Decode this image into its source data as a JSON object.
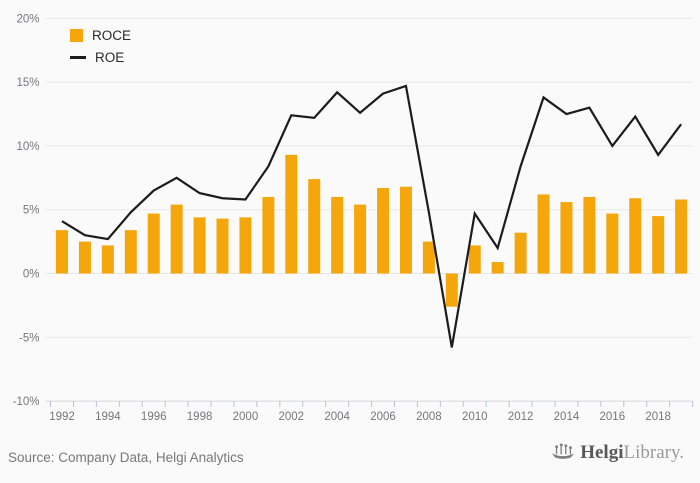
{
  "chart_data": {
    "type": "combo",
    "title": "",
    "xlabel": "",
    "ylabel": "",
    "categories": [
      "1992",
      "1993",
      "1994",
      "1995",
      "1996",
      "1997",
      "1998",
      "1999",
      "2000",
      "2001",
      "2002",
      "2003",
      "2004",
      "2005",
      "2006",
      "2007",
      "2008",
      "2009",
      "2010",
      "2011",
      "2012",
      "2013",
      "2014",
      "2015",
      "2016",
      "2017",
      "2018",
      "2019"
    ],
    "series": [
      {
        "name": "ROCE",
        "type": "bar",
        "values": [
          3.4,
          2.5,
          2.2,
          3.4,
          4.7,
          5.4,
          4.4,
          4.3,
          4.4,
          6.0,
          9.3,
          7.4,
          6.0,
          5.4,
          6.7,
          6.8,
          2.5,
          -2.6,
          2.2,
          0.9,
          3.2,
          6.2,
          5.6,
          6.0,
          4.7,
          5.9,
          4.5,
          5.8
        ]
      },
      {
        "name": "ROE",
        "type": "line",
        "values": [
          4.1,
          3.0,
          2.7,
          4.8,
          6.5,
          7.5,
          6.3,
          5.9,
          5.8,
          8.4,
          12.4,
          12.2,
          14.2,
          12.6,
          14.1,
          14.7,
          4.8,
          -5.8,
          4.7,
          2.0,
          8.4,
          13.8,
          12.5,
          13.0,
          10.0,
          12.3,
          9.3,
          11.7
        ]
      }
    ],
    "ylim": [
      -10,
      20
    ],
    "ytick_labels": [
      "20%",
      "15%",
      "10%",
      "5%",
      "0%",
      "-5%",
      "-10%"
    ],
    "xtick_labels": [
      "1992",
      "1994",
      "1996",
      "1998",
      "2000",
      "2002",
      "2004",
      "2006",
      "2008",
      "2010",
      "2012",
      "2014",
      "2016",
      "2018"
    ],
    "grid": true,
    "legend_position": "top-left",
    "colors": {
      "bar": "#F5A60B",
      "line": "#1c1c1c"
    }
  },
  "footer": {
    "source": "Source: Company Data, Helgi Analytics",
    "logo_bold": "Helgi",
    "logo_light": "Library."
  }
}
